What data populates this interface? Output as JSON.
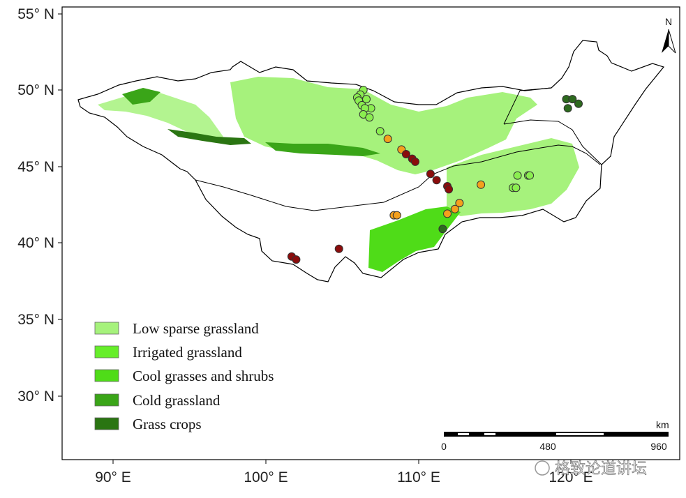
{
  "axes": {
    "y_ticks": [
      "55° N",
      "50° N",
      "45° N",
      "40° N",
      "35° N",
      "30° N"
    ],
    "x_ticks": [
      "90° E",
      "100° E",
      "110° E",
      "120° E"
    ]
  },
  "north_arrow": {
    "label": "N"
  },
  "legend": {
    "items": [
      {
        "label": "Low sparse grassland",
        "color": "#a6f27c"
      },
      {
        "label": "Irrigated grassland",
        "color": "#66ee2a"
      },
      {
        "label": "Cool grasses and shrubs",
        "color": "#4fdc18"
      },
      {
        "label": "Cold grassland",
        "color": "#3aa518"
      },
      {
        "label": "Grass crops",
        "color": "#2a7512"
      }
    ]
  },
  "scale_bar": {
    "unit": "km",
    "labels": [
      "0",
      "480",
      "960"
    ]
  },
  "watermark": {
    "text": "格致论道讲坛"
  },
  "site_groups": [
    {
      "color": "#8bee50",
      "points": [
        [
          106.4,
          50.0
        ],
        [
          106.2,
          49.7
        ],
        [
          106.0,
          49.5
        ],
        [
          106.6,
          49.4
        ],
        [
          106.1,
          49.3
        ],
        [
          106.3,
          49.0
        ],
        [
          106.9,
          48.8
        ],
        [
          106.5,
          48.8
        ],
        [
          106.4,
          48.4
        ],
        [
          106.8,
          48.2
        ],
        [
          107.5,
          47.3
        ],
        [
          116.5,
          44.4
        ],
        [
          117.2,
          44.4
        ],
        [
          117.3,
          44.4
        ],
        [
          116.2,
          43.6
        ],
        [
          116.4,
          43.6
        ]
      ]
    },
    {
      "color": "#f4a01c",
      "points": [
        [
          108.0,
          46.8
        ],
        [
          108.9,
          46.1
        ],
        [
          114.1,
          43.8
        ],
        [
          112.7,
          42.6
        ],
        [
          112.4,
          42.2
        ],
        [
          111.9,
          41.9
        ],
        [
          108.4,
          41.8
        ],
        [
          108.6,
          41.8
        ]
      ]
    },
    {
      "color": "#8b0c0c",
      "points": [
        [
          109.2,
          45.8
        ],
        [
          109.6,
          45.5
        ],
        [
          109.8,
          45.3
        ],
        [
          110.8,
          44.5
        ],
        [
          111.2,
          44.1
        ],
        [
          111.9,
          43.7
        ],
        [
          112.0,
          43.5
        ],
        [
          101.7,
          39.1
        ],
        [
          102.0,
          38.9
        ],
        [
          104.8,
          39.6
        ]
      ]
    },
    {
      "color": "#2d6a1e",
      "points": [
        [
          119.7,
          49.4
        ],
        [
          120.1,
          49.4
        ],
        [
          120.5,
          49.1
        ],
        [
          119.8,
          48.8
        ],
        [
          111.6,
          40.9
        ]
      ]
    }
  ]
}
